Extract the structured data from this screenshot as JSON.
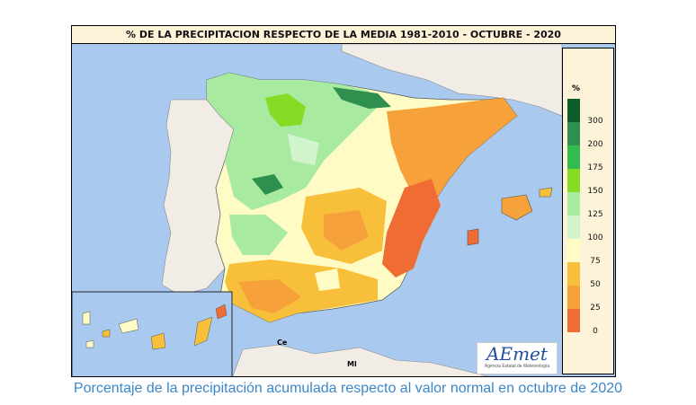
{
  "map": {
    "title": "% DE LA PRECIPITACION RESPECTO DE LA MEDIA 1981-2010 - OCTUBRE - 2020",
    "place_labels": [
      {
        "id": "ceuta",
        "text": "Ce"
      },
      {
        "id": "melilla",
        "text": "Ml"
      }
    ]
  },
  "legend": {
    "unit": "%",
    "items": [
      {
        "label": "300",
        "color": "#0d5e2a"
      },
      {
        "label": "200",
        "color": "#2f8f4e"
      },
      {
        "label": "175",
        "color": "#33bb50"
      },
      {
        "label": "150",
        "color": "#86dc24"
      },
      {
        "label": "125",
        "color": "#a8eba0"
      },
      {
        "label": "100",
        "color": "#d2f4cc"
      },
      {
        "label": "75",
        "color": "#fffbc4"
      },
      {
        "label": "50",
        "color": "#f8c03a"
      },
      {
        "label": "25",
        "color": "#f6a13a"
      },
      {
        "label": "0",
        "color": "#f06c35"
      }
    ]
  },
  "logo": {
    "main": "AEmet",
    "sub": "Agencia Estatal de Meteorología"
  },
  "caption": "Porcentaje de la precipitación acumulada respecto al valor normal en octubre de 2020"
}
